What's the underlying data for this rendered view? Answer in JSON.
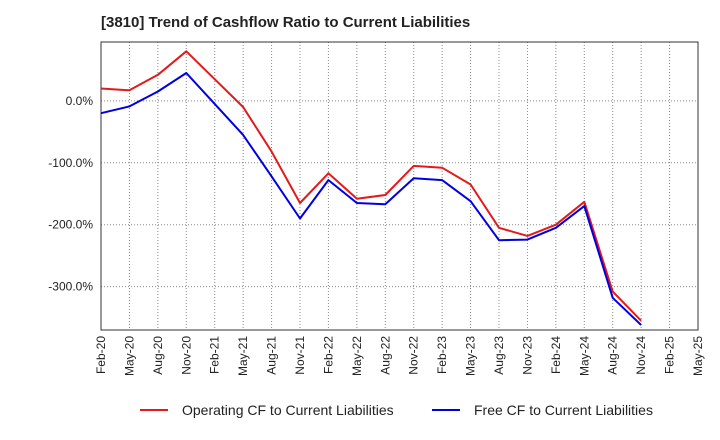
{
  "chart_data": {
    "type": "line",
    "title": "[3810]  Trend of Cashflow Ratio to Current Liabilities",
    "xlabel": "",
    "ylabel": "",
    "ylim": [
      -370,
      95
    ],
    "y_ticks": [
      0,
      -100,
      -200,
      -300
    ],
    "y_tick_labels": [
      "0.0%",
      "-100.0%",
      "-200.0%",
      "-300.0%"
    ],
    "x_tick_labels": [
      "Feb-20",
      "May-20",
      "Aug-20",
      "Nov-20",
      "Feb-21",
      "May-21",
      "Aug-21",
      "Nov-21",
      "Feb-22",
      "May-22",
      "Aug-22",
      "Nov-22",
      "Feb-23",
      "May-23",
      "Aug-23",
      "Nov-23",
      "Feb-24",
      "May-24",
      "Aug-24",
      "Nov-24",
      "Feb-25",
      "May-25"
    ],
    "grid": true,
    "legend_position": "bottom",
    "series": [
      {
        "name": "Operating CF to Current Liabilities",
        "color": "#e31a1c",
        "values": [
          20,
          17,
          42,
          80,
          35,
          -10,
          -82,
          -165,
          -117,
          -158,
          -152,
          -105,
          -108,
          -135,
          -205,
          -218,
          -200,
          -163,
          -308,
          -355,
          null,
          null
        ]
      },
      {
        "name": "Free CF to Current Liabilities",
        "color": "#0000e0",
        "values": [
          -20,
          -9,
          15,
          45,
          -5,
          -55,
          -122,
          -190,
          -128,
          -165,
          -167,
          -125,
          -128,
          -162,
          -225,
          -224,
          -205,
          -170,
          -318,
          -362,
          null,
          null
        ]
      }
    ]
  }
}
